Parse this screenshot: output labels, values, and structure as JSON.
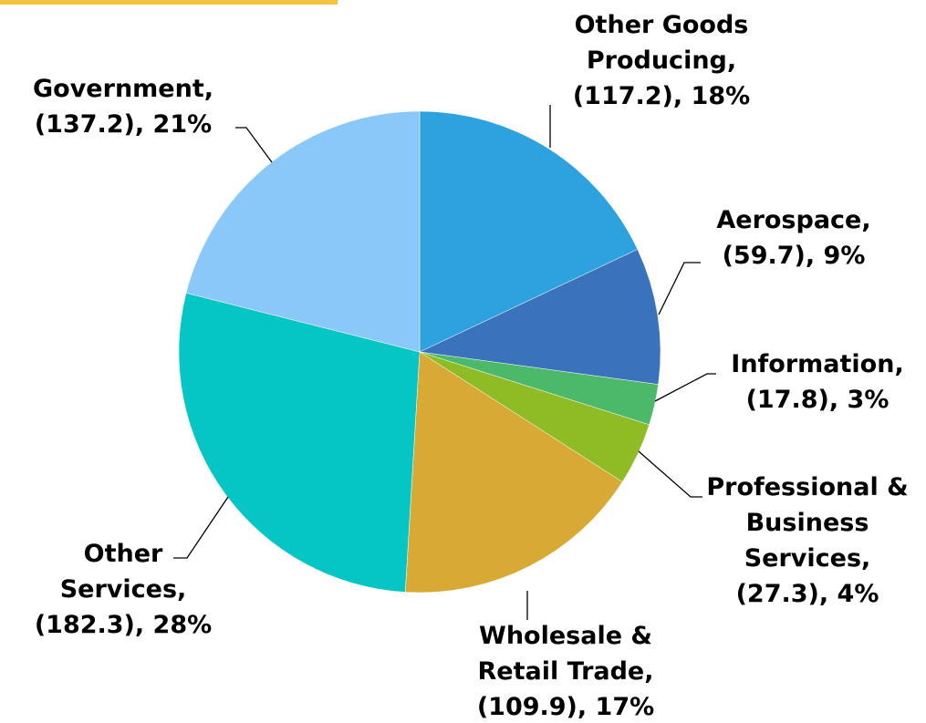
{
  "chart_data": {
    "type": "pie",
    "categories": [
      "Other Goods Producing,",
      "Aerospace,",
      "Information,",
      "Professional & Business Services,",
      "Wholesale & Retail Trade,",
      "Other Services,",
      "Government,"
    ],
    "values": [
      117.2,
      59.7,
      17.8,
      27.3,
      109.9,
      182.3,
      137.2
    ],
    "value_labels": [
      "(117.2), 18%",
      "(59.7), 9%",
      "(17.8), 3%",
      "(27.3), 4%",
      "(109.9), 17%",
      "(182.3), 28%",
      "(137.2), 21%"
    ],
    "colors": [
      "#2ea1df",
      "#3a73bb",
      "#4cb86a",
      "#8fbb25",
      "#d8a935",
      "#05c6c4",
      "#8bc8fa"
    ]
  }
}
